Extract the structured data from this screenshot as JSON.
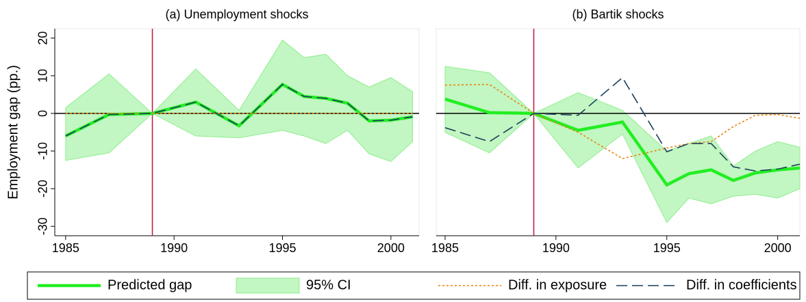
{
  "chart_data": [
    {
      "type": "line",
      "title": "(a) Unemployment shocks",
      "ylabel": "Employment gap (pp.)",
      "x": [
        1985,
        1987,
        1989,
        1991,
        1993,
        1995,
        1996,
        1997,
        1998,
        1999,
        2000,
        2001
      ],
      "xlim": [
        1984.5,
        2001.3
      ],
      "xticks": [
        1985,
        1990,
        1995,
        2000
      ],
      "ylim": [
        -32.5,
        22.5
      ],
      "yticks": [
        -30,
        -20,
        -10,
        0,
        10,
        20
      ],
      "hline": 0,
      "hline_color": "#000000",
      "vline": 1989,
      "vline_color": "#c0143c",
      "series": [
        {
          "name": "Predicted gap",
          "color": "#22ee22",
          "linestyle": "solid",
          "values": [
            -6,
            -0.3,
            0,
            3,
            -3.3,
            7.7,
            4.5,
            4,
            2.7,
            -2,
            -1.8,
            -0.9
          ]
        },
        {
          "name": "95% CI",
          "color": "#90ee90",
          "upper": [
            1.5,
            10.5,
            0,
            11.8,
            0.8,
            19.5,
            14.8,
            15.7,
            10,
            7,
            9.5,
            5.8
          ],
          "lower": [
            -12.5,
            -10.5,
            0,
            -6,
            -6.5,
            -4.5,
            -6,
            -8,
            -4.5,
            -10.8,
            -12.8,
            -7.5
          ]
        },
        {
          "name": "Diff. in exposure",
          "color": "#e8820c",
          "linestyle": "dotted",
          "values": [
            0,
            0,
            0,
            0,
            0,
            0,
            0,
            0,
            0,
            0,
            0,
            0
          ]
        },
        {
          "name": "Diff. in coefficients",
          "color": "#1a3f5c",
          "linestyle": "dashed",
          "values": [
            -6,
            -0.3,
            0,
            3,
            -3.3,
            7.7,
            4.5,
            4,
            2.7,
            -2,
            -1.8,
            -0.9
          ]
        }
      ]
    },
    {
      "type": "line",
      "title": "(b) Bartik shocks",
      "x": [
        1985,
        1987,
        1989,
        1991,
        1993,
        1995,
        1996,
        1997,
        1998,
        1999,
        2000,
        2001
      ],
      "xlim": [
        1984.6,
        2001
      ],
      "xticks": [
        1985,
        1990,
        1995,
        2000
      ],
      "ylim": [
        -32.5,
        22.5
      ],
      "hline": 0,
      "hline_color": "#000000",
      "vline": 1989,
      "vline_color": "#c0143c",
      "series": [
        {
          "color": "#22ee22",
          "linestyle": "solid",
          "values": [
            3.8,
            0.2,
            0,
            -4.5,
            -2.3,
            -19,
            -16,
            -15,
            -17.8,
            -15.8,
            -15,
            -14.5
          ]
        },
        {
          "color": "#90ee90",
          "upper": [
            12.5,
            10.8,
            0,
            5.5,
            0.8,
            -10,
            -8,
            -6,
            -14,
            -10,
            -7.5,
            -9
          ],
          "lower": [
            -5,
            -10.5,
            0,
            -14.5,
            -5.5,
            -29,
            -22.5,
            -24,
            -22,
            -21.5,
            -22.5,
            -20
          ]
        },
        {
          "color": "#e8820c",
          "linestyle": "dotted",
          "values": [
            7.5,
            7.7,
            0,
            -5,
            -12,
            -9.2,
            -8,
            -7.5,
            -3.5,
            -0.5,
            -0.3,
            -1.3
          ]
        },
        {
          "color": "#1a3f5c",
          "linestyle": "dashed",
          "values": [
            -3.8,
            -7.5,
            0,
            -0.5,
            9.5,
            -10.2,
            -8,
            -8,
            -14.2,
            -15.3,
            -14.8,
            -13.5
          ]
        }
      ]
    }
  ]
}
